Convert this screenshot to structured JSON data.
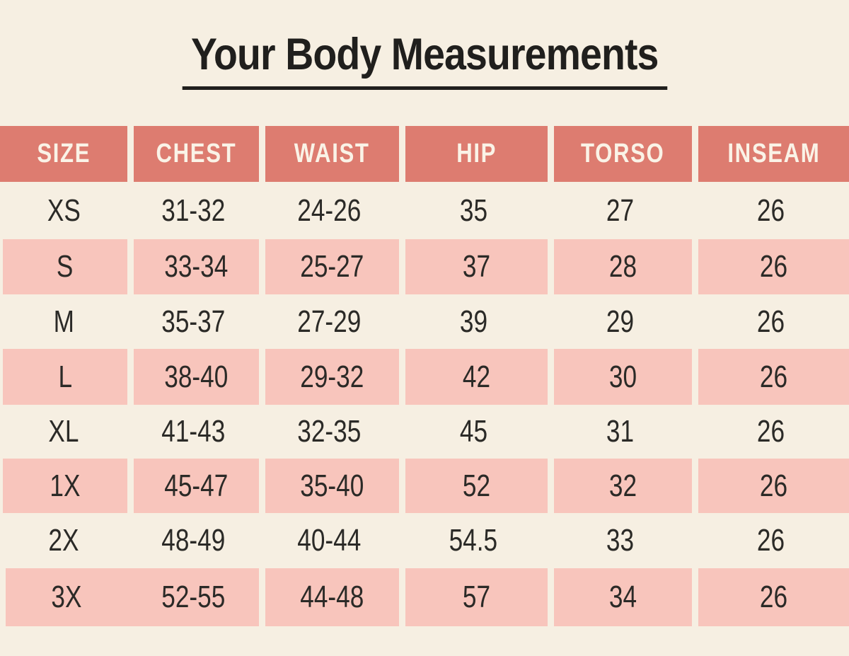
{
  "colors": {
    "background": "#F6EFE2",
    "header_bg": "#DD7C70",
    "row_shaded_bg": "#F8C5BC",
    "header_text": "#FAF3E7",
    "body_text": "#2B2A27",
    "title_text": "#201F1D"
  },
  "title": {
    "text": "Your Body Measurements"
  },
  "chart_data": {
    "type": "table",
    "title": "Your Body Measurements",
    "columns": [
      "SIZE",
      "CHEST",
      "WAIST",
      "HIP",
      "TORSO",
      "INSEAM"
    ],
    "rows": [
      {
        "cells": [
          "XS",
          "31-32",
          "24-26",
          "35",
          "27",
          "26"
        ],
        "shaded": false,
        "merge_size_chest": false
      },
      {
        "cells": [
          "S",
          "33-34",
          "25-27",
          "37",
          "28",
          "26"
        ],
        "shaded": true,
        "merge_size_chest": false
      },
      {
        "cells": [
          "M",
          "35-37",
          "27-29",
          "39",
          "29",
          "26"
        ],
        "shaded": false,
        "merge_size_chest": false
      },
      {
        "cells": [
          "L",
          "38-40",
          "29-32",
          "42",
          "30",
          "26"
        ],
        "shaded": true,
        "merge_size_chest": false
      },
      {
        "cells": [
          "XL",
          "41-43",
          "32-35",
          "45",
          "31",
          "26"
        ],
        "shaded": false,
        "merge_size_chest": false
      },
      {
        "cells": [
          "1X",
          "45-47",
          "35-40",
          "52",
          "32",
          "26"
        ],
        "shaded": true,
        "merge_size_chest": false
      },
      {
        "cells": [
          "2X",
          "48-49",
          "40-44",
          "54.5",
          "33",
          "26"
        ],
        "shaded": false,
        "merge_size_chest": false
      },
      {
        "cells": [
          "3X",
          "52-55",
          "44-48",
          "57",
          "34",
          "26"
        ],
        "shaded": true,
        "merge_size_chest": true
      }
    ],
    "layout_hints": {
      "shading_pattern": "alternating rows, shaded starting at second data row",
      "column_dividers_visible_on": "header and shaded rows only"
    }
  }
}
